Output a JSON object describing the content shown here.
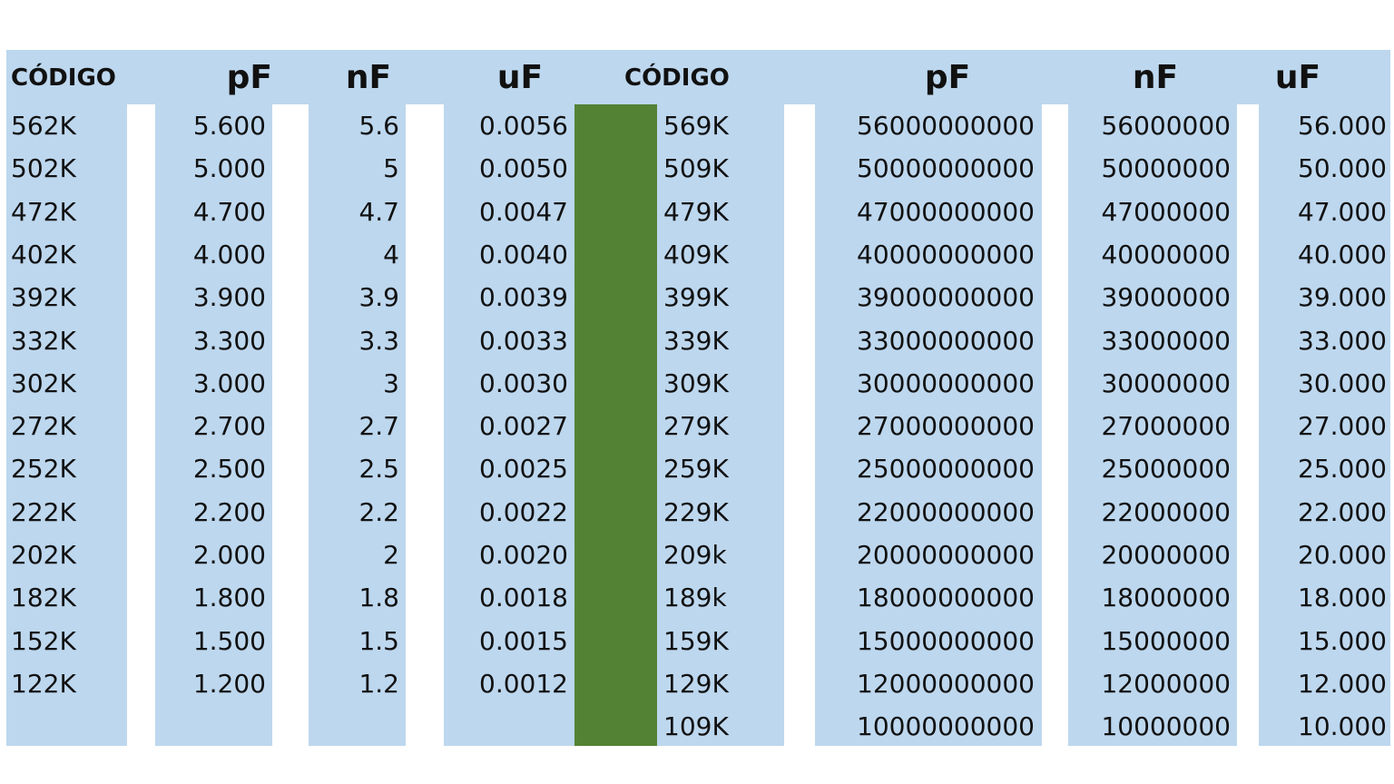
{
  "table": {
    "left": {
      "headers": [
        "CÓDIGO",
        "pF",
        "nF",
        "uF"
      ],
      "rows": [
        [
          "562K",
          "5.600",
          "5.6",
          "0.0056"
        ],
        [
          "502K",
          "5.000",
          "5",
          "0.0050"
        ],
        [
          "472K",
          "4.700",
          "4.7",
          "0.0047"
        ],
        [
          "402K",
          "4.000",
          "4",
          "0.0040"
        ],
        [
          "392K",
          "3.900",
          "3.9",
          "0.0039"
        ],
        [
          "332K",
          "3.300",
          "3.3",
          "0.0033"
        ],
        [
          "302K",
          "3.000",
          "3",
          "0.0030"
        ],
        [
          "272K",
          "2.700",
          "2.7",
          "0.0027"
        ],
        [
          "252K",
          "2.500",
          "2.5",
          "0.0025"
        ],
        [
          "222K",
          "2.200",
          "2.2",
          "0.0022"
        ],
        [
          "202K",
          "2.000",
          "2",
          "0.0020"
        ],
        [
          "182K",
          "1.800",
          "1.8",
          "0.0018"
        ],
        [
          "152K",
          "1.500",
          "1.5",
          "0.0015"
        ],
        [
          "122K",
          "1.200",
          "1.2",
          "0.0012"
        ]
      ]
    },
    "right": {
      "headers": [
        "CÓDIGO",
        "pF",
        "nF",
        "uF"
      ],
      "rows": [
        [
          "569K",
          "56000000000",
          "56000000",
          "56.000"
        ],
        [
          "509K",
          "50000000000",
          "50000000",
          "50.000"
        ],
        [
          "479K",
          "47000000000",
          "47000000",
          "47.000"
        ],
        [
          "409K",
          "40000000000",
          "40000000",
          "40.000"
        ],
        [
          "399K",
          "39000000000",
          "39000000",
          "39.000"
        ],
        [
          "339K",
          "33000000000",
          "33000000",
          "33.000"
        ],
        [
          "309K",
          "30000000000",
          "30000000",
          "30.000"
        ],
        [
          "279K",
          "27000000000",
          "27000000",
          "27.000"
        ],
        [
          "259K",
          "25000000000",
          "25000000",
          "25.000"
        ],
        [
          "229K",
          "22000000000",
          "22000000",
          "22.000"
        ],
        [
          "209k",
          "20000000000",
          "20000000",
          "20.000"
        ],
        [
          "189k",
          "18000000000",
          "18000000",
          "18.000"
        ],
        [
          "159K",
          "15000000000",
          "15000000",
          "15.000"
        ],
        [
          "129K",
          "12000000000",
          "12000000",
          "12.000"
        ],
        [
          "109K",
          "10000000000",
          "10000000",
          "10.000"
        ]
      ]
    }
  }
}
